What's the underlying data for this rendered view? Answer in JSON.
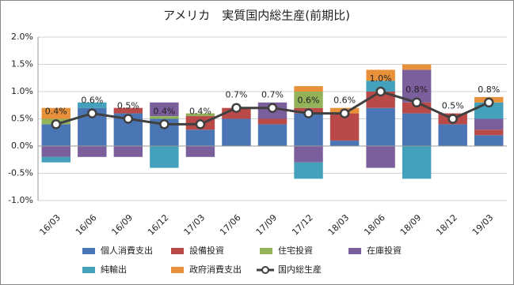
{
  "chart_data": {
    "type": "stacked-bar-line",
    "title": "アメリカ　実質国内総生産(前期比)",
    "categories": [
      "16/03",
      "16/06",
      "16/09",
      "16/12",
      "17/03",
      "17/06",
      "17/09",
      "17/12",
      "18/03",
      "18/06",
      "18/09",
      "18/12",
      "19/03"
    ],
    "series": [
      {
        "name": "個人消費支出",
        "color": "#4a76b5",
        "values": [
          0.4,
          0.7,
          0.6,
          0.5,
          0.3,
          0.5,
          0.4,
          0.6,
          0.1,
          0.7,
          0.6,
          0.4,
          0.2
        ]
      },
      {
        "name": "設備投資",
        "color": "#b94a48",
        "values": [
          0,
          0,
          0.1,
          0,
          0.25,
          0.2,
          0.1,
          0.1,
          0.5,
          0.3,
          0.2,
          0.2,
          0.1
        ]
      },
      {
        "name": "住宅投資",
        "color": "#93b35a",
        "values": [
          0.1,
          0,
          0,
          0.05,
          0.05,
          0,
          0,
          0.3,
          0,
          0,
          0,
          0,
          0
        ]
      },
      {
        "name": "在庫投資",
        "color": "#7b5e9c",
        "values": [
          -0.2,
          -0.2,
          -0.2,
          0.25,
          -0.2,
          0,
          0.3,
          -0.3,
          0,
          -0.4,
          0.6,
          0,
          0.2
        ]
      },
      {
        "name": "純輸出",
        "color": "#43a1bb",
        "values": [
          -0.1,
          0.1,
          0,
          -0.4,
          0,
          0,
          0,
          -0.3,
          0,
          0.2,
          -0.6,
          0,
          0.3
        ]
      },
      {
        "name": "政府消費支出",
        "color": "#e8913a",
        "values": [
          0.2,
          0,
          0,
          0,
          0,
          0,
          0,
          0.1,
          0.1,
          0.2,
          0.1,
          0,
          0.1
        ]
      }
    ],
    "line": {
      "name": "国内総生産",
      "color": "#404040",
      "values": [
        0.4,
        0.6,
        0.5,
        0.4,
        0.4,
        0.7,
        0.7,
        0.6,
        0.6,
        1.0,
        0.8,
        0.5,
        0.8
      ],
      "value_labels": [
        "0.4%",
        "0.6%",
        "0.5%",
        "0.4%",
        "0.4%",
        "0.7%",
        "0.7%",
        "0.6%",
        "0.6%",
        "1.0%",
        "0.8%",
        "0.5%",
        "0.8%"
      ]
    },
    "ylim": [
      -1.0,
      2.0
    ],
    "yticks": [
      {
        "value": -1.0,
        "label": "-1.0%"
      },
      {
        "value": -0.5,
        "label": "-0.5%"
      },
      {
        "value": 0,
        "label": "0.0%"
      },
      {
        "value": 0.5,
        "label": "0.5%"
      },
      {
        "value": 1.0,
        "label": "1.0%"
      },
      {
        "value": 1.5,
        "label": "1.5%"
      },
      {
        "value": 2.0,
        "label": "2.0%"
      }
    ],
    "grid": true
  }
}
